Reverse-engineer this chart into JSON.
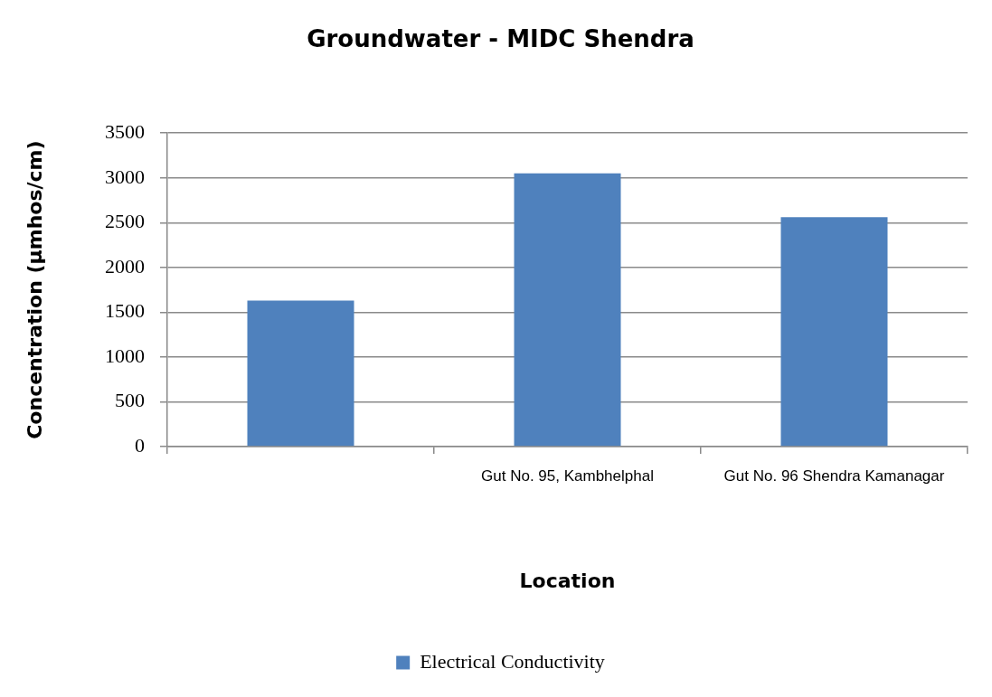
{
  "chart_data": {
    "type": "bar",
    "title": "Groundwater - MIDC Shendra",
    "xlabel": "Location",
    "ylabel": "Concentration (µmhos/cm)",
    "categories": [
      null,
      "Gut No. 95, Kambhelphal",
      "Gut No. 96 Shendra Kamanagar"
    ],
    "series": [
      {
        "name": "Electrical Conductivity",
        "color": "#4f81bd",
        "values": [
          1630,
          3050,
          2560
        ]
      }
    ],
    "ylim": [
      0,
      3500
    ],
    "yticks": [
      0,
      500,
      1000,
      1500,
      2000,
      2500,
      3000,
      3500
    ],
    "grid": "y",
    "legend": "bottom"
  }
}
